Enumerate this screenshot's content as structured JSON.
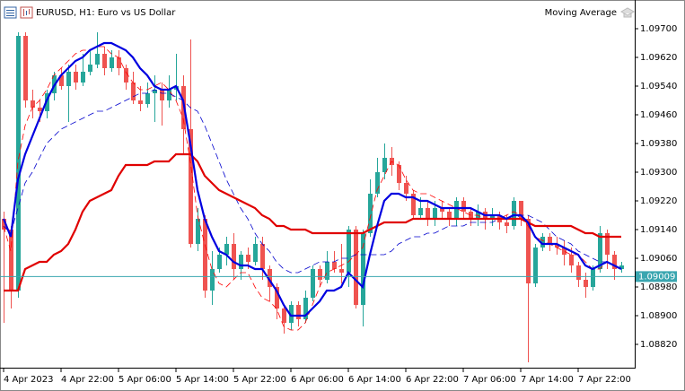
{
  "chart_data": {
    "type": "candlestick",
    "title": "EURUSD, H1:  Euro vs US Dollar",
    "indicator": "Moving Average",
    "categories": [
      "4 Apr 2023",
      null,
      null,
      null,
      null,
      null,
      null,
      null,
      "4 Apr 22:00",
      null,
      null,
      null,
      null,
      null,
      null,
      null,
      "5 Apr 06:00",
      null,
      null,
      null,
      null,
      null,
      null,
      null,
      "5 Apr 14:00",
      null,
      null,
      null,
      null,
      null,
      null,
      null,
      "5 Apr 22:00",
      null,
      null,
      null,
      null,
      null,
      null,
      null,
      "6 Apr 06:00",
      null,
      null,
      null,
      null,
      null,
      null,
      null,
      "6 Apr 14:00",
      null,
      null,
      null,
      null,
      null,
      null,
      null,
      "6 Apr 22:00",
      null,
      null,
      null,
      null,
      null,
      null,
      null,
      "7 Apr 06:00",
      null,
      null,
      null,
      null,
      null,
      null,
      null,
      "7 Apr 14:00",
      null,
      null,
      null,
      null,
      null,
      null,
      null,
      "7 Apr 22:00",
      null,
      null,
      null,
      null,
      null,
      null
    ],
    "open": [
      1.0917,
      1.0914,
      1.0897,
      1.0968,
      1.095,
      1.0948,
      1.0947,
      1.0952,
      1.0957,
      1.0954,
      1.0958,
      1.0955,
      1.0958,
      1.096,
      1.0963,
      1.0959,
      1.0962,
      1.0959,
      1.0955,
      1.095,
      1.0949,
      1.0952,
      1.0953,
      1.095,
      1.0953,
      1.0954,
      1.0942,
      1.091,
      1.0917,
      1.0897,
      1.0903,
      1.0907,
      1.091,
      1.0903,
      1.0907,
      1.0905,
      1.091,
      1.0903,
      1.0898,
      1.0892,
      1.0888,
      1.0893,
      1.0889,
      1.0895,
      1.0903,
      1.09,
      1.0905,
      1.0903,
      1.0902,
      1.0914,
      1.0893,
      1.0913,
      1.0924,
      1.093,
      1.0934,
      1.0932,
      1.0927,
      1.0924,
      1.0918,
      1.092,
      1.0917,
      1.092,
      1.0919,
      1.0917,
      1.0922,
      1.0919,
      1.0917,
      1.0919,
      1.0917,
      1.0918,
      1.0916,
      1.0915,
      1.0922,
      1.0917,
      1.0899,
      1.0909,
      1.0912,
      1.091,
      1.0909,
      1.0907,
      1.0904,
      1.09,
      1.0898,
      1.0903,
      1.0913,
      1.0907,
      1.0903
    ],
    "high": [
      1.0919,
      1.0915,
      1.0969,
      1.0969,
      1.0953,
      1.095,
      1.0953,
      1.0958,
      1.0959,
      1.096,
      1.096,
      1.0963,
      1.0964,
      1.0969,
      1.0965,
      1.0964,
      1.0964,
      1.096,
      1.0958,
      1.0954,
      1.0955,
      1.0957,
      1.0955,
      1.0957,
      1.0963,
      1.0957,
      1.0967,
      1.092,
      1.0918,
      1.0908,
      1.0909,
      1.0912,
      1.0913,
      1.0908,
      1.0909,
      1.0912,
      1.0912,
      1.0904,
      1.0899,
      1.0893,
      1.0894,
      1.0894,
      1.0897,
      1.0904,
      1.0904,
      1.0908,
      1.0908,
      1.091,
      1.0915,
      1.0915,
      1.0914,
      1.0928,
      1.0934,
      1.0938,
      1.0937,
      1.0933,
      1.0929,
      1.0925,
      1.0923,
      1.0922,
      1.0922,
      1.0922,
      1.092,
      1.0923,
      1.0923,
      1.092,
      1.0921,
      1.092,
      1.092,
      1.0919,
      1.0918,
      1.0923,
      1.0922,
      1.0918,
      1.091,
      1.0913,
      1.0913,
      1.0912,
      1.0911,
      1.0909,
      1.0905,
      1.0902,
      1.0904,
      1.0915,
      1.0914,
      1.0908,
      1.0905
    ],
    "low": [
      1.0888,
      1.0892,
      1.0895,
      1.0948,
      1.0945,
      1.0944,
      1.0945,
      1.095,
      1.0953,
      1.0944,
      1.0953,
      1.0954,
      1.0957,
      1.0959,
      1.0957,
      1.0958,
      1.0957,
      1.0953,
      1.0949,
      1.0947,
      1.0948,
      1.0944,
      1.0943,
      1.0948,
      1.095,
      1.0935,
      1.0909,
      1.0908,
      1.0895,
      1.0893,
      1.0902,
      1.0904,
      1.09,
      1.09,
      1.0903,
      1.0904,
      1.09,
      1.0894,
      1.0889,
      1.0885,
      1.0886,
      1.0887,
      1.0888,
      1.0894,
      1.0898,
      1.0899,
      1.0902,
      1.0899,
      1.0898,
      1.0892,
      1.0887,
      1.0912,
      1.0923,
      1.0928,
      1.0929,
      1.0925,
      1.0922,
      1.0917,
      1.0917,
      1.0915,
      1.0915,
      1.0917,
      1.0915,
      1.0915,
      1.0917,
      1.0915,
      1.0915,
      1.0914,
      1.0915,
      1.0914,
      1.0913,
      1.0914,
      1.0915,
      1.0877,
      1.0898,
      1.0908,
      1.0908,
      1.0907,
      1.0904,
      1.0902,
      1.0898,
      1.0895,
      1.0897,
      1.0902,
      1.0903,
      1.09,
      1.0902
    ],
    "close": [
      1.0914,
      1.0897,
      1.0968,
      1.095,
      1.0948,
      1.0947,
      1.0952,
      1.0957,
      1.0954,
      1.0958,
      1.0955,
      1.0958,
      1.096,
      1.0963,
      1.0959,
      1.0962,
      1.0959,
      1.0955,
      1.095,
      1.0949,
      1.0952,
      1.0953,
      1.095,
      1.0953,
      1.0954,
      1.0942,
      1.091,
      1.0917,
      1.0897,
      1.0903,
      1.0907,
      1.091,
      1.0903,
      1.0907,
      1.0905,
      1.091,
      1.0903,
      1.0898,
      1.0892,
      1.0888,
      1.0893,
      1.0889,
      1.0895,
      1.0903,
      1.09,
      1.0905,
      1.0903,
      1.0902,
      1.0914,
      1.0893,
      1.0913,
      1.0924,
      1.093,
      1.0934,
      1.0932,
      1.0927,
      1.0924,
      1.0918,
      1.092,
      1.0917,
      1.092,
      1.0919,
      1.0917,
      1.0922,
      1.0919,
      1.0917,
      1.0919,
      1.0917,
      1.0918,
      1.0916,
      1.0915,
      1.0922,
      1.0917,
      1.0899,
      1.0909,
      1.0912,
      1.091,
      1.0909,
      1.0907,
      1.0904,
      1.09,
      1.0898,
      1.0903,
      1.0913,
      1.0907,
      1.0903,
      1.0904
    ],
    "up_color": "#26a69a",
    "down_color": "#ef5350",
    "series": [
      {
        "color": "#ff0000",
        "dashed": true,
        "width": 0.8,
        "values": [
          1.0915,
          1.0908,
          1.0933,
          1.0943,
          1.0948,
          1.095,
          1.0953,
          1.0957,
          1.0959,
          1.0961,
          1.0963,
          1.0964,
          1.0964,
          1.0965,
          1.0965,
          1.0963,
          1.0962,
          1.0958,
          1.0955,
          1.0953,
          1.0953,
          1.0954,
          1.0955,
          1.0953,
          1.095,
          1.0945,
          1.0933,
          1.0918,
          1.091,
          1.0903,
          1.0899,
          1.0898,
          1.09,
          1.0902,
          1.0902,
          1.0898,
          1.0895,
          1.0894,
          1.0892,
          1.0887,
          1.0886,
          1.0886,
          1.0888,
          1.0893,
          1.0898,
          1.0902,
          1.0903,
          1.0904,
          1.0905,
          1.0907,
          1.0909,
          1.0917,
          1.0925,
          1.0929,
          1.0933,
          1.0932,
          1.0928,
          1.0925,
          1.0924,
          1.0924,
          1.0923,
          1.0922,
          1.0921,
          1.092,
          1.0919,
          1.0918,
          1.0918,
          1.0917,
          1.0917,
          1.0917,
          1.0918,
          1.0919,
          1.0918,
          1.0915,
          1.0912,
          1.0911,
          1.091,
          1.0909,
          1.0908,
          1.0907,
          1.0907,
          1.0905,
          1.0903,
          1.0903,
          1.0905,
          1.0904,
          1.0903
        ]
      },
      {
        "color": "#0000cd",
        "dashed": true,
        "width": 0.8,
        "values": [
          1.0915,
          1.0913,
          1.092,
          1.0927,
          1.093,
          1.0934,
          1.0938,
          1.094,
          1.0942,
          1.0943,
          1.0944,
          1.0945,
          1.0946,
          1.0947,
          1.0947,
          1.0948,
          1.0949,
          1.095,
          1.0951,
          1.0952,
          1.0952,
          1.0953,
          1.0952,
          1.0952,
          1.0951,
          1.095,
          1.0948,
          1.0947,
          1.0943,
          1.0938,
          1.0933,
          1.0928,
          1.0924,
          1.092,
          1.0917,
          1.0913,
          1.091,
          1.0908,
          1.0905,
          1.0903,
          1.0902,
          1.0902,
          1.0903,
          1.0904,
          1.0905,
          1.0905,
          1.0905,
          1.0906,
          1.0906,
          1.0907,
          1.0907,
          1.0907,
          1.0907,
          1.0907,
          1.0908,
          1.091,
          1.0911,
          1.0912,
          1.0912,
          1.0913,
          1.0913,
          1.0914,
          1.0915,
          1.0915,
          1.0915,
          1.0916,
          1.0916,
          1.0916,
          1.0916,
          1.0917,
          1.0917,
          1.0917,
          1.0918,
          1.0918,
          1.0917,
          1.0916,
          1.0914,
          1.0912,
          1.0911,
          1.091,
          1.0908,
          1.0907,
          1.0906,
          1.0905,
          1.0905,
          1.0904,
          1.0903
        ]
      },
      {
        "color": "#e00000",
        "dashed": false,
        "width": 2.2,
        "values": [
          1.0897,
          1.0897,
          1.0897,
          1.0903,
          1.0904,
          1.0905,
          1.0905,
          1.0907,
          1.0908,
          1.091,
          1.0914,
          1.0919,
          1.0922,
          1.0923,
          1.0924,
          1.0925,
          1.0929,
          1.0932,
          1.0932,
          1.0932,
          1.0932,
          1.0933,
          1.0933,
          1.0933,
          1.0935,
          1.0935,
          1.0935,
          1.0933,
          1.0929,
          1.0927,
          1.0925,
          1.0924,
          1.0923,
          1.0922,
          1.0921,
          1.092,
          1.0918,
          1.0917,
          1.0915,
          1.0915,
          1.0914,
          1.0914,
          1.0914,
          1.0913,
          1.0913,
          1.0913,
          1.0913,
          1.0913,
          1.0913,
          1.0913,
          1.0913,
          1.0914,
          1.0915,
          1.0916,
          1.0916,
          1.0916,
          1.0916,
          1.0917,
          1.0917,
          1.0917,
          1.0917,
          1.0917,
          1.0917,
          1.0917,
          1.0917,
          1.0917,
          1.0917,
          1.0917,
          1.0917,
          1.0917,
          1.0917,
          1.0917,
          1.0917,
          1.0916,
          1.0915,
          1.0915,
          1.0915,
          1.0915,
          1.0915,
          1.0915,
          1.0914,
          1.0913,
          1.0913,
          1.0912,
          1.0912,
          1.0912,
          1.0912
        ]
      },
      {
        "color": "#0000e0",
        "dashed": false,
        "width": 2.2,
        "values": [
          1.0917,
          1.0912,
          1.0928,
          1.0935,
          1.094,
          1.0945,
          1.095,
          1.0954,
          1.0957,
          1.0959,
          1.0961,
          1.0962,
          1.0964,
          1.0965,
          1.0966,
          1.0966,
          1.0965,
          1.0964,
          1.0962,
          1.0959,
          1.0957,
          1.0954,
          1.0953,
          1.0953,
          1.0954,
          1.095,
          1.0938,
          1.0925,
          1.0917,
          1.0912,
          1.0908,
          1.0907,
          1.0905,
          1.0904,
          1.0904,
          1.0903,
          1.0903,
          1.09,
          1.0897,
          1.0893,
          1.089,
          1.089,
          1.089,
          1.0892,
          1.0894,
          1.0897,
          1.0897,
          1.0898,
          1.0902,
          1.09,
          1.0898,
          1.0907,
          1.0915,
          1.0922,
          1.0924,
          1.0924,
          1.0923,
          1.0923,
          1.0922,
          1.0922,
          1.0921,
          1.092,
          1.092,
          1.092,
          1.092,
          1.092,
          1.0919,
          1.0918,
          1.0918,
          1.0918,
          1.0917,
          1.0918,
          1.0918,
          1.0916,
          1.0912,
          1.091,
          1.091,
          1.091,
          1.0909,
          1.0908,
          1.0907,
          1.0904,
          1.0903,
          1.0904,
          1.0905,
          1.0904,
          1.0903
        ]
      }
    ],
    "last_price": 1.09009,
    "last_price_color": "#3aa6b0",
    "ylim": [
      1.08755,
      1.0978
    ],
    "yticks": [
      {
        "value": 1.097,
        "label": "1.09700"
      },
      {
        "value": 1.0962,
        "label": "1.09620"
      },
      {
        "value": 1.0954,
        "label": "1.09540"
      },
      {
        "value": 1.0946,
        "label": "1.09460"
      },
      {
        "value": 1.0938,
        "label": "1.09380"
      },
      {
        "value": 1.093,
        "label": "1.09300"
      },
      {
        "value": 1.0922,
        "label": "1.09220"
      },
      {
        "value": 1.0914,
        "label": "1.09140"
      },
      {
        "value": 1.0906,
        "label": "1.09060"
      },
      {
        "value": 1.0898,
        "label": "1.08980"
      },
      {
        "value": 1.089,
        "label": "1.08900"
      },
      {
        "value": 1.0882,
        "label": "1.08820"
      }
    ],
    "grid": false
  }
}
